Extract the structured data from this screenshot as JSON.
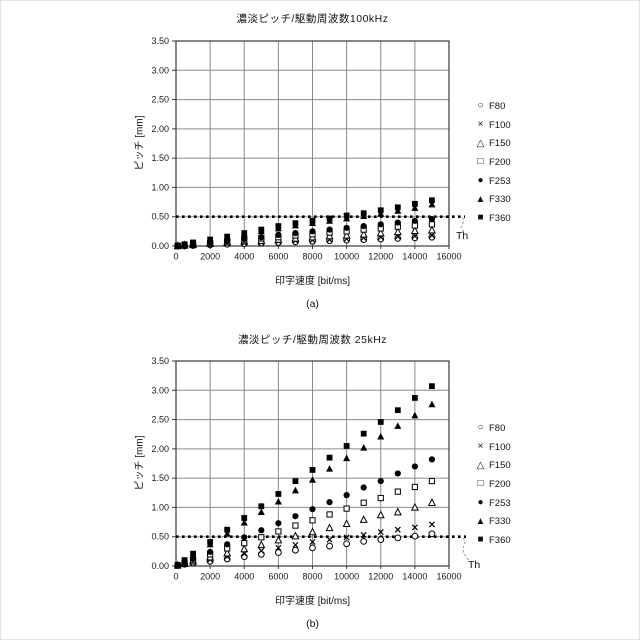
{
  "figure": {
    "background": "#ffffff",
    "ink_color": "#000000",
    "grid_color": "#8a8a8a"
  },
  "chart_data": [
    {
      "type": "scatter",
      "title": "濃淡ピッチ/駆動周波数100kHz",
      "caption": "(a)",
      "xlabel": "印字速度 [bit/ms]",
      "ylabel": "ピッチ [mm]",
      "xlim": [
        0,
        16000
      ],
      "ylim": [
        0,
        3.5
      ],
      "grid": true,
      "legend_position": "right",
      "x_ticks": [
        0,
        2000,
        4000,
        6000,
        8000,
        10000,
        12000,
        14000,
        16000
      ],
      "y_tick_labels": [
        "0.00",
        "0.50",
        "1.00",
        "1.50",
        "2.00",
        "2.50",
        "3.00",
        "3.50"
      ],
      "threshold": {
        "value": 0.5,
        "label": "Th",
        "style": "dotted"
      },
      "x": [
        100,
        500,
        1000,
        2000,
        3000,
        4000,
        5000,
        6000,
        7000,
        8000,
        9000,
        10000,
        11000,
        12000,
        13000,
        14000,
        15000
      ],
      "series": [
        {
          "name": "F80",
          "marker": "circle-open",
          "glyph": "○",
          "values": [
            0.0,
            0.0,
            0.01,
            0.02,
            0.03,
            0.04,
            0.05,
            0.06,
            0.07,
            0.08,
            0.09,
            0.1,
            0.11,
            0.12,
            0.13,
            0.14,
            0.15
          ]
        },
        {
          "name": "F100",
          "marker": "cross",
          "glyph": "×",
          "values": [
            0.0,
            0.01,
            0.01,
            0.03,
            0.04,
            0.05,
            0.06,
            0.08,
            0.09,
            0.1,
            0.11,
            0.12,
            0.14,
            0.15,
            0.16,
            0.17,
            0.18
          ]
        },
        {
          "name": "F150",
          "marker": "triangle-open",
          "glyph": "△",
          "values": [
            0.0,
            0.01,
            0.02,
            0.04,
            0.06,
            0.08,
            0.09,
            0.11,
            0.13,
            0.15,
            0.17,
            0.18,
            0.2,
            0.22,
            0.24,
            0.26,
            0.27
          ]
        },
        {
          "name": "F200",
          "marker": "square-open",
          "glyph": "□",
          "values": [
            0.0,
            0.01,
            0.03,
            0.05,
            0.08,
            0.1,
            0.13,
            0.15,
            0.18,
            0.2,
            0.23,
            0.25,
            0.28,
            0.3,
            0.33,
            0.35,
            0.37
          ]
        },
        {
          "name": "F253",
          "marker": "circle-filled",
          "glyph": "●",
          "values": [
            0.0,
            0.02,
            0.03,
            0.06,
            0.09,
            0.12,
            0.15,
            0.19,
            0.22,
            0.25,
            0.28,
            0.31,
            0.34,
            0.37,
            0.4,
            0.43,
            0.46
          ]
        },
        {
          "name": "F330",
          "marker": "triangle-filled",
          "glyph": "▲",
          "values": [
            0.01,
            0.03,
            0.05,
            0.1,
            0.15,
            0.2,
            0.25,
            0.3,
            0.35,
            0.39,
            0.43,
            0.47,
            0.51,
            0.55,
            0.6,
            0.65,
            0.71
          ]
        },
        {
          "name": "F360",
          "marker": "square-filled",
          "glyph": "■",
          "values": [
            0.01,
            0.03,
            0.06,
            0.11,
            0.16,
            0.22,
            0.28,
            0.34,
            0.39,
            0.43,
            0.47,
            0.52,
            0.56,
            0.61,
            0.66,
            0.72,
            0.78
          ]
        }
      ]
    },
    {
      "type": "scatter",
      "title": "濃淡ピッチ/駆動周波数 25kHz",
      "caption": "(b)",
      "xlabel": "印字速度 [bit/ms]",
      "ylabel": "ピッチ [mm]",
      "xlim": [
        0,
        16000
      ],
      "ylim": [
        0,
        3.5
      ],
      "grid": true,
      "legend_position": "right",
      "x_ticks": [
        0,
        2000,
        4000,
        6000,
        8000,
        10000,
        12000,
        14000,
        16000
      ],
      "y_tick_labels": [
        "0.00",
        "0.50",
        "1.00",
        "1.50",
        "2.00",
        "2.50",
        "3.00",
        "3.50"
      ],
      "threshold": {
        "value": 0.5,
        "label": "Th",
        "style": "dotted"
      },
      "x": [
        100,
        500,
        1000,
        2000,
        3000,
        4000,
        5000,
        6000,
        7000,
        8000,
        9000,
        10000,
        11000,
        12000,
        13000,
        14000,
        15000
      ],
      "series": [
        {
          "name": "F80",
          "marker": "circle-open",
          "glyph": "○",
          "values": [
            0.01,
            0.03,
            0.05,
            0.08,
            0.12,
            0.16,
            0.2,
            0.23,
            0.27,
            0.31,
            0.34,
            0.38,
            0.42,
            0.45,
            0.48,
            0.51,
            0.55
          ]
        },
        {
          "name": "F100",
          "marker": "cross",
          "glyph": "×",
          "values": [
            0.01,
            0.03,
            0.06,
            0.11,
            0.16,
            0.21,
            0.26,
            0.31,
            0.36,
            0.41,
            0.45,
            0.49,
            0.53,
            0.58,
            0.62,
            0.66,
            0.71
          ]
        },
        {
          "name": "F150",
          "marker": "triangle-open",
          "glyph": "△",
          "values": [
            0.01,
            0.04,
            0.08,
            0.15,
            0.22,
            0.29,
            0.36,
            0.44,
            0.51,
            0.58,
            0.65,
            0.72,
            0.79,
            0.87,
            0.92,
            1.0,
            1.08
          ]
        },
        {
          "name": "F200",
          "marker": "square-open",
          "glyph": "□",
          "values": [
            0.01,
            0.05,
            0.1,
            0.2,
            0.3,
            0.39,
            0.49,
            0.59,
            0.69,
            0.78,
            0.88,
            0.98,
            1.08,
            1.16,
            1.27,
            1.35,
            1.45
          ]
        },
        {
          "name": "F253",
          "marker": "circle-filled",
          "glyph": "●",
          "values": [
            0.01,
            0.06,
            0.12,
            0.24,
            0.37,
            0.49,
            0.61,
            0.73,
            0.85,
            0.97,
            1.09,
            1.21,
            1.34,
            1.45,
            1.58,
            1.7,
            1.82
          ]
        },
        {
          "name": "F330",
          "marker": "triangle-filled",
          "glyph": "▲",
          "values": [
            0.02,
            0.09,
            0.18,
            0.37,
            0.55,
            0.74,
            0.92,
            1.1,
            1.29,
            1.47,
            1.66,
            1.84,
            2.02,
            2.21,
            2.39,
            2.57,
            2.76
          ]
        },
        {
          "name": "F360",
          "marker": "square-filled",
          "glyph": "■",
          "values": [
            0.02,
            0.1,
            0.21,
            0.41,
            0.62,
            0.82,
            1.02,
            1.23,
            1.45,
            1.64,
            1.85,
            2.05,
            2.26,
            2.46,
            2.66,
            2.87,
            3.07
          ]
        }
      ]
    }
  ]
}
